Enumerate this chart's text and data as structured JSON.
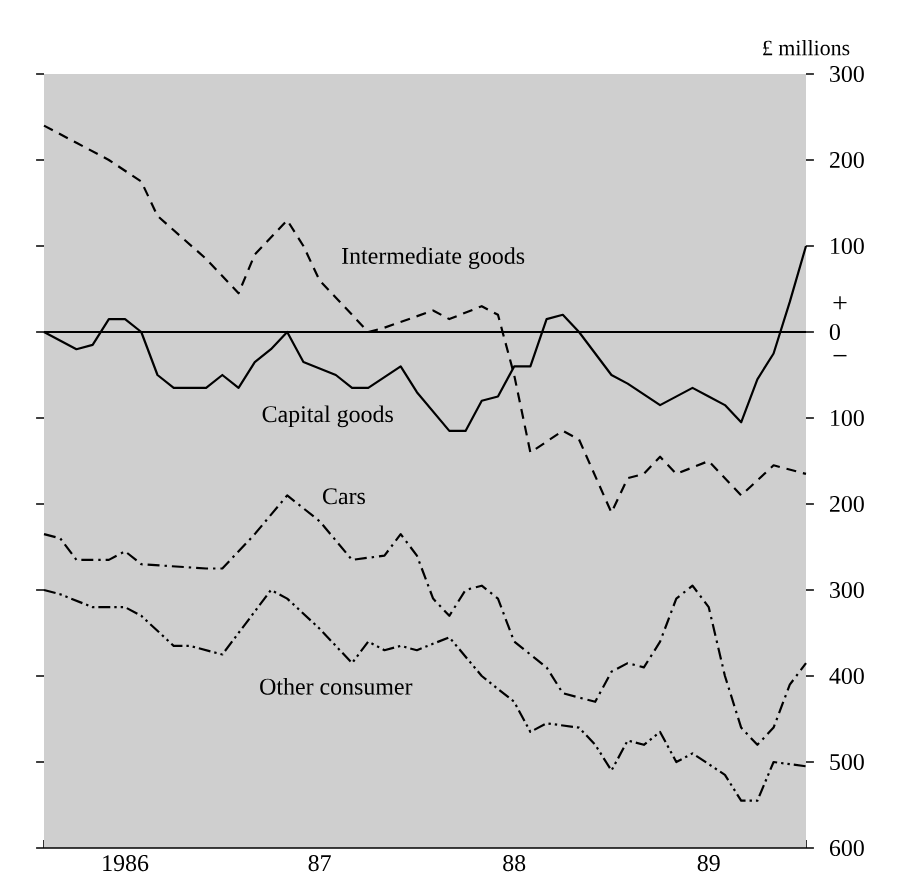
{
  "chart_data": {
    "type": "line",
    "ylabel": "£ millions",
    "xlim": [
      "1986-02",
      "1990-01"
    ],
    "xticks": [
      {
        "value": "1986-02",
        "label": null
      },
      {
        "value": "1986-03",
        "label": null
      },
      {
        "value": "1986-04",
        "label": null
      },
      {
        "value": "1986-05",
        "label": null
      },
      {
        "value": "1986-06",
        "label": null
      },
      {
        "value": "1986-07",
        "label": "1986"
      },
      {
        "value": "1986-08",
        "label": null
      },
      {
        "value": "1986-09",
        "label": null
      },
      {
        "value": "1986-10",
        "label": null
      },
      {
        "value": "1986-11",
        "label": null
      },
      {
        "value": "1986-12",
        "label": null
      },
      {
        "value": "1987-01",
        "label": null
      },
      {
        "value": "1987-02",
        "label": null
      },
      {
        "value": "1987-03",
        "label": null
      },
      {
        "value": "1987-04",
        "label": null
      },
      {
        "value": "1987-05",
        "label": null
      },
      {
        "value": "1987-06",
        "label": null
      },
      {
        "value": "1987-07",
        "label": "87"
      },
      {
        "value": "1987-08",
        "label": null
      },
      {
        "value": "1987-09",
        "label": null
      },
      {
        "value": "1987-10",
        "label": null
      },
      {
        "value": "1987-11",
        "label": null
      },
      {
        "value": "1987-12",
        "label": null
      },
      {
        "value": "1988-01",
        "label": null
      },
      {
        "value": "1988-02",
        "label": null
      },
      {
        "value": "1988-03",
        "label": null
      },
      {
        "value": "1988-04",
        "label": null
      },
      {
        "value": "1988-05",
        "label": null
      },
      {
        "value": "1988-06",
        "label": null
      },
      {
        "value": "1988-07",
        "label": "88"
      },
      {
        "value": "1988-08",
        "label": null
      },
      {
        "value": "1988-09",
        "label": null
      },
      {
        "value": "1988-10",
        "label": null
      },
      {
        "value": "1988-11",
        "label": null
      },
      {
        "value": "1988-12",
        "label": null
      },
      {
        "value": "1989-01",
        "label": null
      },
      {
        "value": "1989-02",
        "label": null
      },
      {
        "value": "1989-03",
        "label": null
      },
      {
        "value": "1989-04",
        "label": null
      },
      {
        "value": "1989-05",
        "label": null
      },
      {
        "value": "1989-06",
        "label": null
      },
      {
        "value": "1989-07",
        "label": "89"
      },
      {
        "value": "1989-08",
        "label": null
      },
      {
        "value": "1989-09",
        "label": null
      },
      {
        "value": "1989-10",
        "label": null
      },
      {
        "value": "1989-11",
        "label": null
      },
      {
        "value": "1989-12",
        "label": null
      },
      {
        "value": "1990-01",
        "label": null
      }
    ],
    "ylim": [
      -600,
      300
    ],
    "yticks": [
      300,
      200,
      100,
      0,
      {
        "value": -100,
        "label": "100"
      },
      {
        "value": -200,
        "label": "200"
      },
      {
        "value": -300,
        "label": "300"
      },
      {
        "value": -400,
        "label": "400"
      },
      {
        "value": -500,
        "label": "500"
      },
      {
        "value": -600,
        "label": "600"
      }
    ],
    "ref_lines": [
      {
        "axis": "y",
        "value": 0,
        "color": "#000000"
      }
    ],
    "annotations": [
      "+",
      "−"
    ],
    "series": [
      {
        "name": "Intermediate goods",
        "color": "#000000",
        "line_style": "dashed",
        "x": [
          "1986-02",
          "1986-04",
          "1986-06",
          "1986-08",
          "1986-09",
          "1986-12",
          "1987-02",
          "1987-03",
          "1987-05",
          "1987-06",
          "1987-07",
          "1987-10",
          "1987-11",
          "1988-02",
          "1988-03",
          "1988-05",
          "1988-06",
          "1988-07",
          "1988-08",
          "1988-10",
          "1988-11",
          "1989-01",
          "1989-02",
          "1989-03",
          "1989-04",
          "1989-05",
          "1989-07",
          "1989-09",
          "1989-11",
          "1990-01"
        ],
        "values": [
          240,
          220,
          200,
          175,
          135,
          85,
          45,
          90,
          130,
          100,
          60,
          0,
          5,
          25,
          15,
          30,
          20,
          -50,
          -140,
          -115,
          -125,
          -210,
          -170,
          -165,
          -145,
          -165,
          -150,
          -190,
          -155,
          -165
        ]
      },
      {
        "name": "Capital goods",
        "color": "#000000",
        "line_style": "solid",
        "x": [
          "1986-02",
          "1986-04",
          "1986-05",
          "1986-06",
          "1986-07",
          "1986-08",
          "1986-09",
          "1986-10",
          "1986-12",
          "1987-01",
          "1987-02",
          "1987-03",
          "1987-04",
          "1987-05",
          "1987-06",
          "1987-08",
          "1987-09",
          "1987-10",
          "1987-12",
          "1988-01",
          "1988-03",
          "1988-04",
          "1988-05",
          "1988-06",
          "1988-07",
          "1988-08",
          "1988-09",
          "1988-10",
          "1988-11",
          "1989-01",
          "1989-02",
          "1989-04",
          "1989-06",
          "1989-07",
          "1989-08",
          "1989-09",
          "1989-10",
          "1989-11",
          "1989-12",
          "1990-01"
        ],
        "values": [
          0,
          -20,
          -15,
          15,
          15,
          0,
          -50,
          -65,
          -65,
          -50,
          -65,
          -35,
          -20,
          0,
          -35,
          -50,
          -65,
          -65,
          -40,
          -70,
          -115,
          -115,
          -80,
          -75,
          -40,
          -40,
          15,
          20,
          0,
          -50,
          -60,
          -85,
          -65,
          -75,
          -85,
          -105,
          -55,
          -25,
          35,
          100
        ]
      },
      {
        "name": "Cars",
        "color": "#000000",
        "line_style": "dashdot",
        "x": [
          "1986-02",
          "1986-03",
          "1986-04",
          "1986-06",
          "1986-07",
          "1986-08",
          "1986-12",
          "1987-01",
          "1987-03",
          "1987-05",
          "1987-07",
          "1987-09",
          "1987-11",
          "1987-12",
          "1988-01",
          "1988-02",
          "1988-03",
          "1988-04",
          "1988-05",
          "1988-06",
          "1988-07",
          "1988-09",
          "1988-10",
          "1988-12",
          "1989-01",
          "1989-02",
          "1989-03",
          "1989-04",
          "1989-05",
          "1989-06",
          "1989-07",
          "1989-08",
          "1989-09",
          "1989-10",
          "1989-11",
          "1989-12",
          "1990-01"
        ],
        "values": [
          -235,
          -240,
          -265,
          -265,
          -255,
          -270,
          -275,
          -275,
          -235,
          -190,
          -220,
          -265,
          -260,
          -235,
          -260,
          -310,
          -330,
          -300,
          -295,
          -310,
          -360,
          -390,
          -420,
          -430,
          -395,
          -385,
          -390,
          -360,
          -310,
          -295,
          -320,
          -400,
          -460,
          -480,
          -460,
          -410,
          -385
        ]
      },
      {
        "name": "Other consumer",
        "color": "#000000",
        "line_style": "dashdotdot",
        "x": [
          "1986-02",
          "1986-03",
          "1986-05",
          "1986-07",
          "1986-08",
          "1986-10",
          "1986-11",
          "1987-01",
          "1987-04",
          "1987-05",
          "1987-07",
          "1987-09",
          "1987-10",
          "1987-11",
          "1987-12",
          "1988-01",
          "1988-03",
          "1988-05",
          "1988-07",
          "1988-08",
          "1988-09",
          "1988-11",
          "1988-12",
          "1989-01",
          "1989-02",
          "1989-03",
          "1989-04",
          "1989-05",
          "1989-06",
          "1989-08",
          "1989-09",
          "1989-10",
          "1989-11",
          "1990-01"
        ],
        "values": [
          -300,
          -305,
          -320,
          -320,
          -330,
          -365,
          -365,
          -375,
          -300,
          -310,
          -345,
          -385,
          -360,
          -370,
          -365,
          -370,
          -355,
          -400,
          -430,
          -465,
          -455,
          -460,
          -480,
          -510,
          -475,
          -480,
          -465,
          -500,
          -490,
          -515,
          -545,
          -545,
          -500,
          -505
        ]
      }
    ]
  }
}
